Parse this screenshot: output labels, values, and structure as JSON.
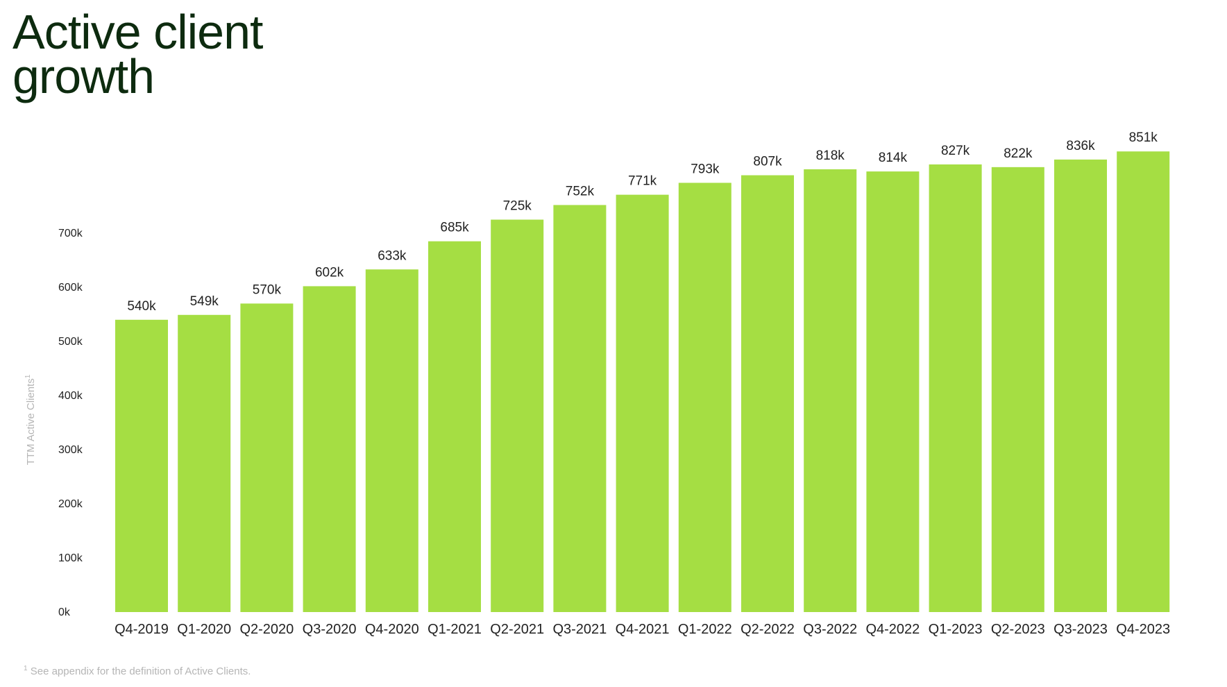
{
  "title": {
    "line1": "Active client",
    "line2": "growth"
  },
  "footnote": {
    "marker": "1",
    "text": "See appendix for the definition of Active Clients."
  },
  "colors": {
    "bar": "#a5de43",
    "title": "#0d2b0f",
    "axis_text": "#222222",
    "ylabel": "#b5b5b5"
  },
  "chart_data": {
    "type": "bar",
    "categories": [
      "Q4-2019",
      "Q1-2020",
      "Q2-2020",
      "Q3-2020",
      "Q4-2020",
      "Q1-2021",
      "Q2-2021",
      "Q3-2021",
      "Q4-2021",
      "Q1-2022",
      "Q2-2022",
      "Q3-2022",
      "Q4-2022",
      "Q1-2023",
      "Q2-2023",
      "Q3-2023",
      "Q4-2023"
    ],
    "values": [
      540,
      549,
      570,
      602,
      633,
      685,
      725,
      752,
      771,
      793,
      807,
      818,
      814,
      827,
      822,
      836,
      851
    ],
    "data_labels": [
      "540k",
      "549k",
      "570k",
      "602k",
      "633k",
      "685k",
      "725k",
      "752k",
      "771k",
      "793k",
      "807k",
      "818k",
      "814k",
      "827k",
      "822k",
      "836k",
      "851k"
    ],
    "yticks": [
      {
        "value": 0,
        "label": "0k"
      },
      {
        "value": 100,
        "label": "100k"
      },
      {
        "value": 200,
        "label": "200k"
      },
      {
        "value": 300,
        "label": "300k"
      },
      {
        "value": 400,
        "label": "400k"
      },
      {
        "value": 500,
        "label": "500k"
      },
      {
        "value": 600,
        "label": "600k"
      },
      {
        "value": 700,
        "label": "700k"
      }
    ],
    "ylabel": "TTM Active Clients",
    "ylabel_superscript": "1",
    "xlabel": "",
    "ylim": [
      0,
      880
    ],
    "grid": false,
    "legend": "none"
  }
}
